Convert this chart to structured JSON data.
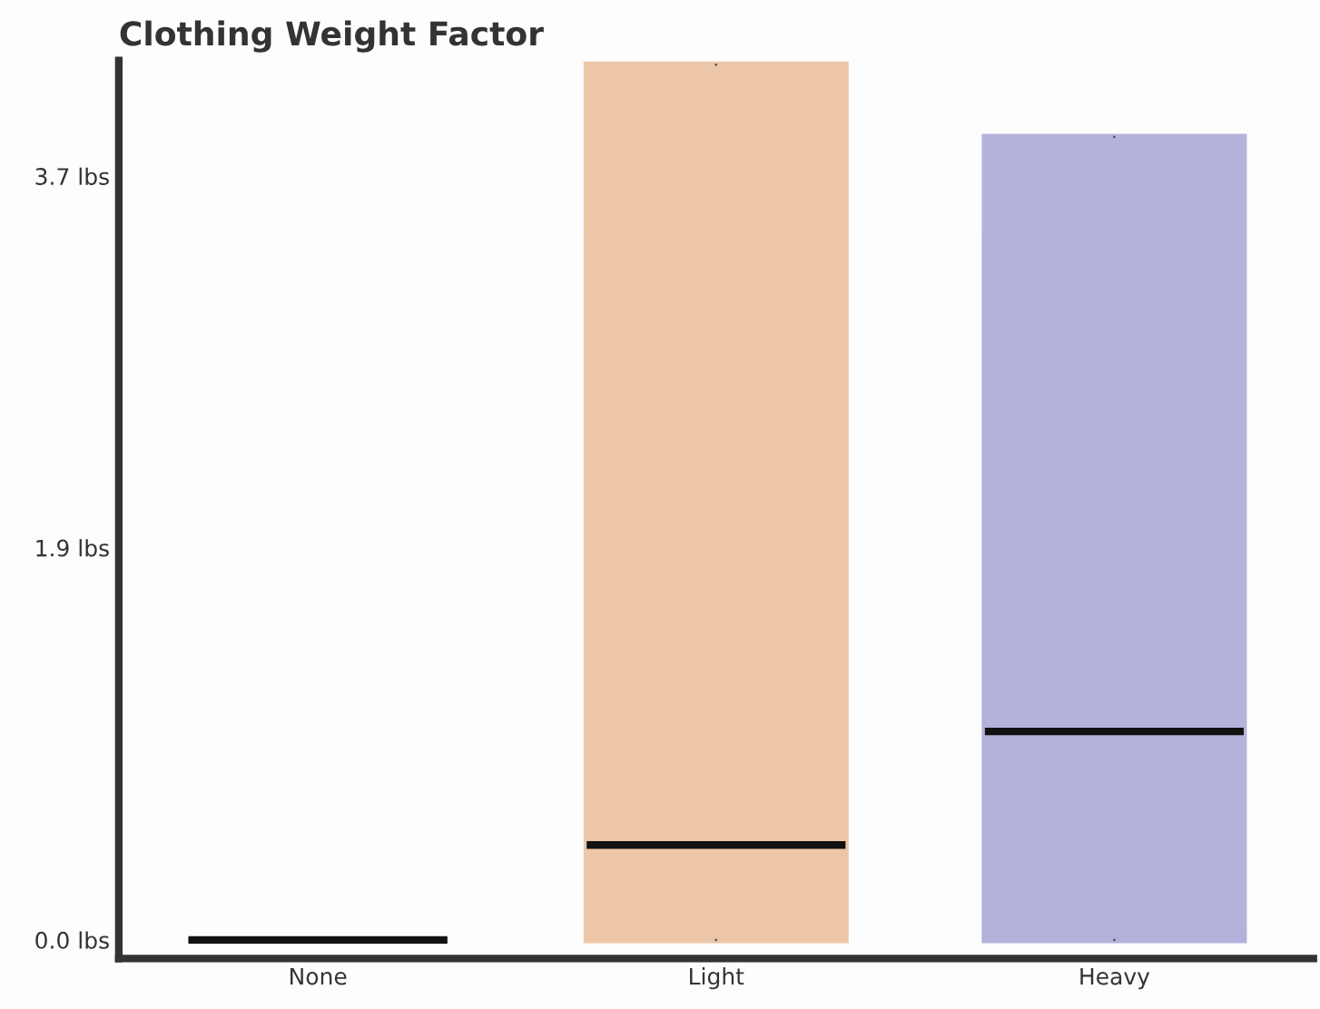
{
  "chart_data": {
    "type": "box",
    "title": "Clothing Weight Factor",
    "categories": [
      "None",
      "Light",
      "Heavy"
    ],
    "boxes": [
      {
        "low": 0,
        "q1": 0,
        "median": 0,
        "q3": 0,
        "high": 0
      },
      {
        "low": 0,
        "q1": 0,
        "median": 0.46,
        "q3": 4.24,
        "high": 4.24
      },
      {
        "low": 0,
        "q1": 0,
        "median": 1.01,
        "q3": 3.89,
        "high": 3.89
      }
    ],
    "colors": [
      "#222222",
      "#e8b48c",
      "#9c9ad0"
    ],
    "ylim": [
      -0.09,
      4.26
    ],
    "yticks": [
      {
        "value": 0,
        "label": "0.0 lbs"
      },
      {
        "value": 1.9,
        "label": "1.9 lbs"
      },
      {
        "value": 3.7,
        "label": "3.7 lbs"
      }
    ],
    "grid": false
  }
}
